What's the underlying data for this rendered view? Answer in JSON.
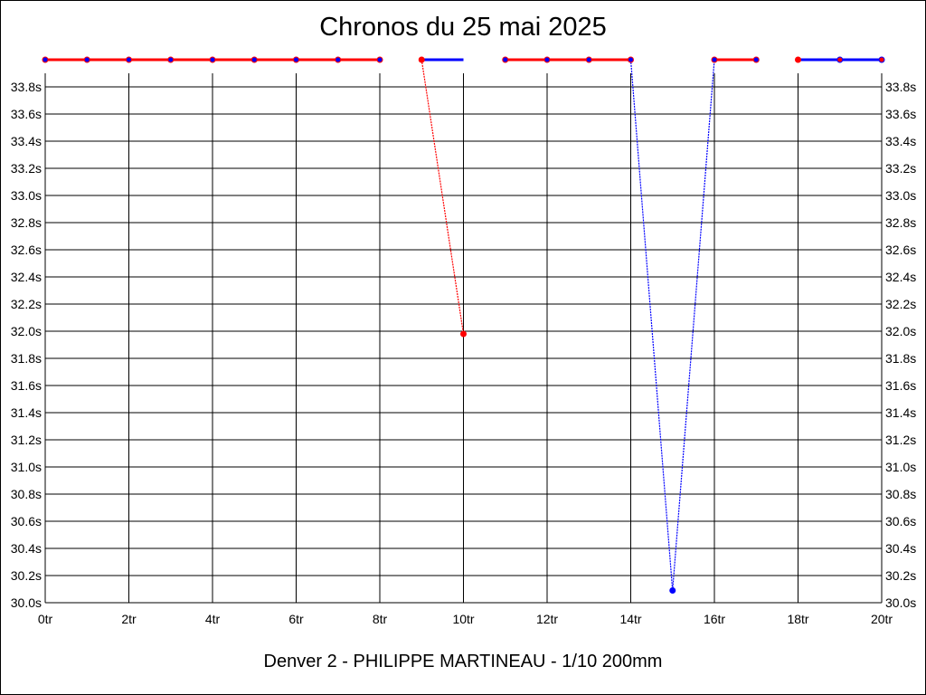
{
  "chart_data": {
    "type": "line",
    "title": "Chronos du 25 mai 2025",
    "subtitle": "Denver 2 - PHILIPPE MARTINEAU - 1/10 200mm",
    "x_ticks": [
      "0tr",
      "2tr",
      "4tr",
      "6tr",
      "8tr",
      "10tr",
      "12tr",
      "14tr",
      "16tr",
      "18tr",
      "20tr"
    ],
    "y_ticks": [
      "30.0s",
      "30.2s",
      "30.4s",
      "30.6s",
      "30.8s",
      "31.0s",
      "31.2s",
      "31.4s",
      "31.6s",
      "31.8s",
      "32.0s",
      "32.2s",
      "32.4s",
      "32.6s",
      "32.8s",
      "33.0s",
      "33.2s",
      "33.4s",
      "33.6s",
      "33.8s"
    ],
    "xlim": [
      0,
      20
    ],
    "ylim": [
      30.0,
      34.0
    ],
    "grid": true,
    "points": [
      {
        "x": 0,
        "y": 34.0
      },
      {
        "x": 1,
        "y": 34.0
      },
      {
        "x": 2,
        "y": 34.0
      },
      {
        "x": 3,
        "y": 34.0
      },
      {
        "x": 4,
        "y": 34.0
      },
      {
        "x": 5,
        "y": 34.0
      },
      {
        "x": 6,
        "y": 34.0
      },
      {
        "x": 7,
        "y": 34.0
      },
      {
        "x": 8,
        "y": 34.0
      },
      {
        "x": 9,
        "y": 34.0
      },
      {
        "x": 10,
        "y": 31.98
      },
      {
        "x": 11,
        "y": 34.0
      },
      {
        "x": 12,
        "y": 34.0
      },
      {
        "x": 13,
        "y": 34.0
      },
      {
        "x": 14,
        "y": 34.0
      },
      {
        "x": 15,
        "y": 30.09
      },
      {
        "x": 16,
        "y": 34.0
      },
      {
        "x": 17,
        "y": 34.0
      },
      {
        "x": 18,
        "y": 34.0
      },
      {
        "x": 19,
        "y": 34.0
      },
      {
        "x": 20,
        "y": 34.0
      }
    ],
    "segments": [
      {
        "from": 0,
        "to": 1,
        "color": "#ff0000"
      },
      {
        "from": 1,
        "to": 2,
        "color": "#ff0000"
      },
      {
        "from": 2,
        "to": 3,
        "color": "#ff0000"
      },
      {
        "from": 3,
        "to": 4,
        "color": "#ff0000"
      },
      {
        "from": 4,
        "to": 5,
        "color": "#ff0000"
      },
      {
        "from": 5,
        "to": 6,
        "color": "#ff0000"
      },
      {
        "from": 6,
        "to": 7,
        "color": "#ff0000"
      },
      {
        "from": 7,
        "to": 8,
        "color": "#ff0000"
      },
      {
        "from": 9,
        "to": 10,
        "color": "#ff0000",
        "dashed": true
      },
      {
        "from": 11,
        "to": 12,
        "color": "#ff0000"
      },
      {
        "from": 12,
        "to": 13,
        "color": "#ff0000"
      },
      {
        "from": 13,
        "to": 14,
        "color": "#ff0000"
      },
      {
        "from": 14,
        "to": 15,
        "color": "#0000ff",
        "dashed": true
      },
      {
        "from": 15,
        "to": 16,
        "color": "#0000ff",
        "dashed": true
      },
      {
        "from": 16,
        "to": 17,
        "color": "#ff0000"
      },
      {
        "from": 18,
        "to": 19,
        "color": "#0000ff"
      },
      {
        "from": 19,
        "to": 20,
        "color": "#0000ff"
      }
    ],
    "flat_marks": [
      {
        "from": 9,
        "to": 10,
        "y": 34.0,
        "color": "#0000ff"
      }
    ],
    "point_colors": [
      "#0000ff",
      "#0000ff",
      "#0000ff",
      "#0000ff",
      "#0000ff",
      "#0000ff",
      "#0000ff",
      "#0000ff",
      "#0000ff",
      "#ff0000",
      "#ff0000",
      "#0000ff",
      "#0000ff",
      "#0000ff",
      "#0000ff",
      "#0000ff",
      "#0000ff",
      "#0000ff",
      "#ff0000",
      "#ff0000",
      "#ff0000"
    ],
    "point_outline_colors": [
      "#ff0000",
      "#ff0000",
      "#ff0000",
      "#ff0000",
      "#ff0000",
      "#ff0000",
      "#ff0000",
      "#ff0000",
      "#ff0000",
      "#ff0000",
      "#ff0000",
      "#ff0000",
      "#ff0000",
      "#ff0000",
      "#ff0000",
      "#0000ff",
      "#ff0000",
      "#ff0000",
      "#ff0000",
      "#0000ff",
      "#0000ff"
    ],
    "colors": {
      "grid": "#000000",
      "red": "#ff0000",
      "blue": "#0000ff"
    }
  }
}
